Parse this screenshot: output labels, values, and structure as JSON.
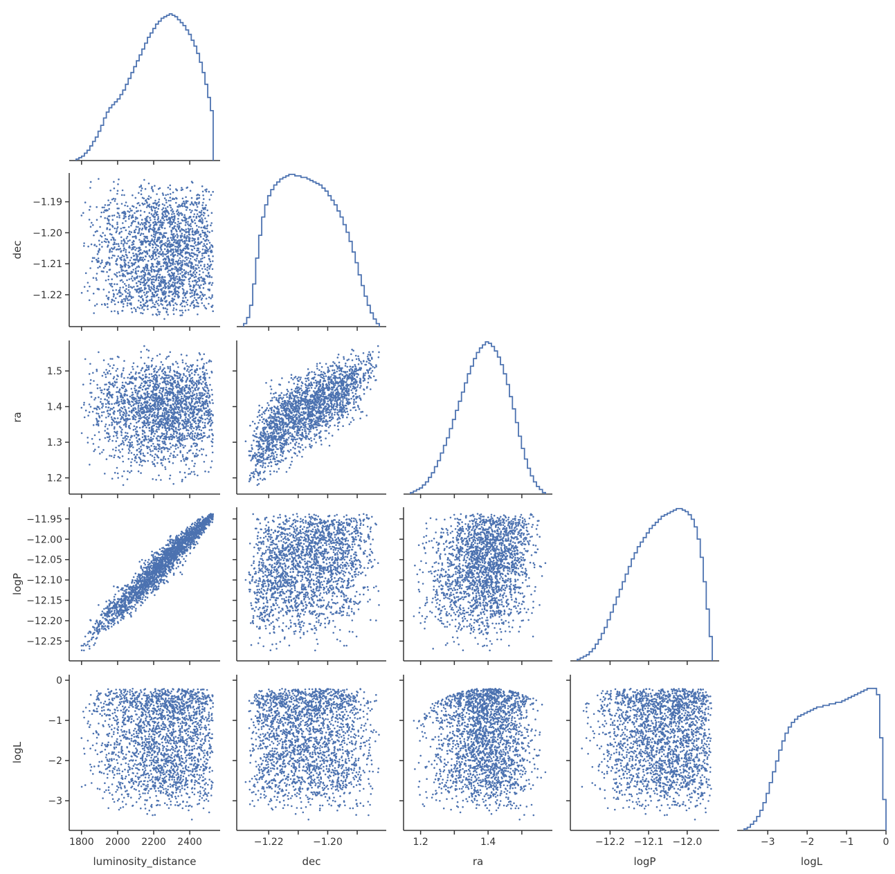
{
  "chart_data": {
    "type": "scatter",
    "subtype": "corner-plot",
    "marker_color": "#4c72b0",
    "axis_color": "#333333",
    "grid": false,
    "variables": [
      {
        "name": "luminosity_distance",
        "label": "luminosity_distance",
        "range": [
          1770,
          2530
        ],
        "ticks": [
          1800,
          2000,
          2200,
          2400
        ],
        "tick_labels": [
          "1800",
          "2000",
          "2200",
          "2400"
        ]
      },
      {
        "name": "dec",
        "label": "dec",
        "range": [
          -1.2285,
          -1.1825
        ],
        "ticks": [
          -1.22,
          -1.21,
          -1.2,
          -1.19
        ],
        "tick_labels": [
          "−1.22",
          "−1.21",
          "−1.20",
          "−1.19"
        ],
        "x_tick_labels": [
          "−1.22",
          "",
          "−1.20",
          ""
        ]
      },
      {
        "name": "ra",
        "label": "ra",
        "range": [
          1.17,
          1.57
        ],
        "ticks": [
          1.2,
          1.3,
          1.4,
          1.5
        ],
        "tick_labels": [
          "1.2",
          "1.3",
          "1.4",
          "1.5"
        ],
        "x_tick_labels": [
          "1.2",
          "",
          "1.4",
          ""
        ]
      },
      {
        "name": "logP",
        "label": "logP",
        "range": [
          -12.285,
          -11.935
        ],
        "ticks": [
          -12.25,
          -12.2,
          -12.15,
          -12.1,
          -12.05,
          -12.0,
          -11.95
        ],
        "tick_labels": [
          "−12.25",
          "−12.20",
          "−12.15",
          "−12.10",
          "−12.05",
          "−12.00",
          "−11.95"
        ],
        "x_ticks": [
          -12.2,
          -12.1,
          -12.0
        ],
        "x_tick_labels": [
          "−12.2",
          "−12.1",
          "−12.0"
        ]
      },
      {
        "name": "logL",
        "label": "logL",
        "range": [
          -3.6,
          0.0
        ],
        "ticks": [
          -3,
          -2,
          -1,
          0
        ],
        "tick_labels": [
          "−3",
          "−2",
          "−1",
          "0"
        ]
      }
    ],
    "histograms": [
      {
        "variable": "luminosity_distance",
        "bins": 50,
        "heights": [
          1,
          2,
          3,
          5,
          7,
          10,
          13,
          16,
          20,
          24,
          29,
          33,
          36,
          38,
          40,
          42,
          45,
          48,
          52,
          56,
          60,
          64,
          68,
          72,
          76,
          80,
          84,
          87,
          90,
          93,
          95,
          97,
          98,
          99,
          100,
          99,
          98,
          96,
          94,
          92,
          89,
          86,
          82,
          78,
          73,
          67,
          60,
          52,
          43,
          34
        ]
      },
      {
        "variable": "dec",
        "bins": 45,
        "heights": [
          2,
          6,
          14,
          28,
          45,
          60,
          72,
          80,
          86,
          90,
          93,
          95,
          97,
          98,
          99,
          100,
          100,
          99,
          99,
          98,
          98,
          97,
          96,
          95,
          94,
          93,
          91,
          89,
          86,
          83,
          80,
          76,
          72,
          67,
          62,
          56,
          49,
          42,
          34,
          27,
          20,
          14,
          9,
          5,
          2
        ]
      },
      {
        "variable": "ra",
        "bins": 45,
        "heights": [
          1,
          2,
          3,
          4,
          6,
          8,
          11,
          14,
          18,
          22,
          27,
          32,
          37,
          43,
          49,
          55,
          61,
          67,
          73,
          79,
          84,
          89,
          93,
          96,
          98,
          100,
          99,
          97,
          94,
          90,
          85,
          79,
          72,
          64,
          56,
          47,
          38,
          30,
          23,
          17,
          12,
          8,
          5,
          3,
          1
        ]
      },
      {
        "variable": "logP",
        "bins": 45,
        "heights": [
          1,
          2,
          3,
          4,
          6,
          8,
          11,
          14,
          18,
          22,
          27,
          32,
          37,
          42,
          47,
          52,
          57,
          62,
          67,
          71,
          75,
          78,
          81,
          84,
          87,
          89,
          91,
          93,
          95,
          96,
          97,
          98,
          99,
          100,
          100,
          99,
          98,
          96,
          93,
          88,
          80,
          68,
          52,
          34,
          16
        ]
      },
      {
        "variable": "logL",
        "bins": 45,
        "heights": [
          1,
          2,
          4,
          6,
          9,
          13,
          18,
          24,
          31,
          38,
          45,
          52,
          58,
          63,
          67,
          70,
          72,
          74,
          75,
          76,
          77,
          78,
          79,
          80,
          80,
          81,
          81,
          82,
          82,
          83,
          83,
          84,
          85,
          86,
          87,
          88,
          89,
          90,
          91,
          92,
          92,
          92,
          88,
          60,
          20
        ]
      }
    ],
    "scatter_pairs": [
      {
        "x": "luminosity_distance",
        "y": "dec",
        "relation": "independent",
        "n_points": 2200
      },
      {
        "x": "luminosity_distance",
        "y": "ra",
        "relation": "independent",
        "n_points": 2200
      },
      {
        "x": "dec",
        "y": "ra",
        "relation": "positive",
        "correlation": 0.75,
        "n_points": 2200
      },
      {
        "x": "luminosity_distance",
        "y": "logP",
        "relation": "positive",
        "correlation": 0.97,
        "n_points": 2200
      },
      {
        "x": "dec",
        "y": "logP",
        "relation": "weak-positive",
        "correlation": 0.2,
        "n_points": 2200
      },
      {
        "x": "ra",
        "y": "logP",
        "relation": "weak-positive",
        "correlation": 0.3,
        "n_points": 2200
      },
      {
        "x": "luminosity_distance",
        "y": "logL",
        "relation": "independent",
        "n_points": 2200
      },
      {
        "x": "dec",
        "y": "logL",
        "relation": "independent",
        "n_points": 2200
      },
      {
        "x": "ra",
        "y": "logL",
        "relation": "peaked",
        "peak_x": 1.4,
        "n_points": 2200
      },
      {
        "x": "logP",
        "y": "logL",
        "relation": "weak-positive",
        "correlation": 0.15,
        "n_points": 2200
      }
    ]
  }
}
